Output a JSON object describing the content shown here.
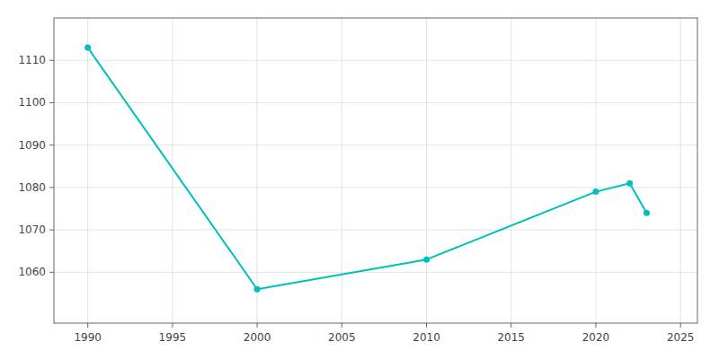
{
  "chart_data": {
    "type": "line",
    "x": [
      1990,
      2000,
      2010,
      2020,
      2022,
      2023
    ],
    "values": [
      1113,
      1056,
      1063,
      1079,
      1081,
      1074
    ],
    "color": "#00BFBF",
    "marker": "circle",
    "xlim": [
      1988,
      2026
    ],
    "ylim": [
      1048,
      1120
    ],
    "xticks": [
      1990,
      1995,
      2000,
      2005,
      2010,
      2015,
      2020,
      2025
    ],
    "yticks": [
      1060,
      1070,
      1080,
      1090,
      1100,
      1110
    ],
    "grid": true
  }
}
